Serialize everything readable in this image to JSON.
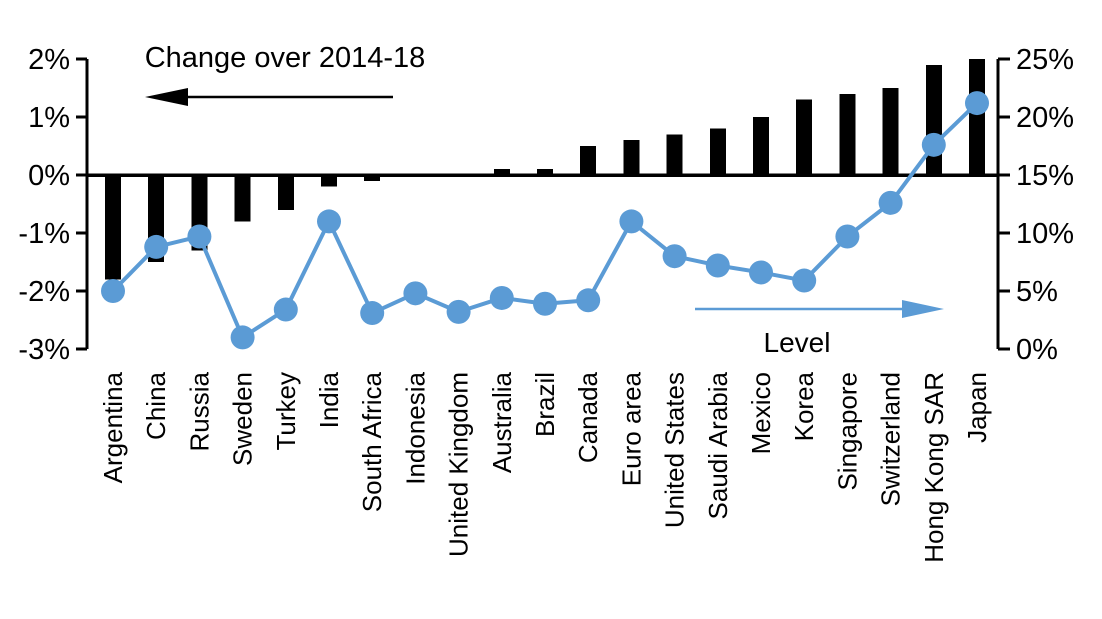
{
  "chart_data": {
    "type": "bar",
    "subtype": "dual-axis-bar-line-combo",
    "categories": [
      "Argentina",
      "China",
      "Russia",
      "Sweden",
      "Turkey",
      "India",
      "South Africa",
      "Indonesia",
      "United Kingdom",
      "Australia",
      "Brazil",
      "Canada",
      "Euro area",
      "United States",
      "Saudi Arabia",
      "Mexico",
      "Korea",
      "Singapore",
      "Switzerland",
      "Hong Kong SAR",
      "Japan"
    ],
    "series": [
      {
        "name": "Change over 2014-18",
        "render": "bar",
        "axis": "left",
        "color": "#000000",
        "values": [
          -1.8,
          -1.5,
          -1.3,
          -0.8,
          -0.6,
          -0.2,
          -0.1,
          0.0,
          0.0,
          0.1,
          0.1,
          0.5,
          0.6,
          0.7,
          0.8,
          1.0,
          1.3,
          1.4,
          1.5,
          1.9,
          2.0
        ]
      },
      {
        "name": "Level",
        "render": "line",
        "axis": "right",
        "color": "#5B9BD5",
        "values": [
          5.0,
          8.8,
          9.7,
          1.0,
          3.4,
          11.0,
          3.1,
          4.8,
          3.2,
          4.4,
          3.9,
          4.2,
          11.0,
          8.0,
          7.2,
          6.6,
          5.9,
          9.7,
          12.6,
          17.6,
          21.2
        ]
      }
    ],
    "left_axis": {
      "ticks": [
        "2%",
        "1%",
        "0%",
        "-1%",
        "-2%",
        "-3%"
      ],
      "tick_values": [
        2,
        1,
        0,
        -1,
        -2,
        -3
      ],
      "range": [
        -3,
        2
      ]
    },
    "right_axis": {
      "ticks": [
        "25%",
        "20%",
        "15%",
        "10%",
        "5%",
        "0%"
      ],
      "tick_values": [
        25,
        20,
        15,
        10,
        5,
        0
      ],
      "range": [
        0,
        25
      ]
    },
    "annotations": {
      "change_label": "Change over 2014-18",
      "level_label": "Level",
      "change_arrow_direction": "left",
      "level_arrow_direction": "right"
    },
    "grid": "off",
    "legend": "annotations-with-arrows"
  }
}
